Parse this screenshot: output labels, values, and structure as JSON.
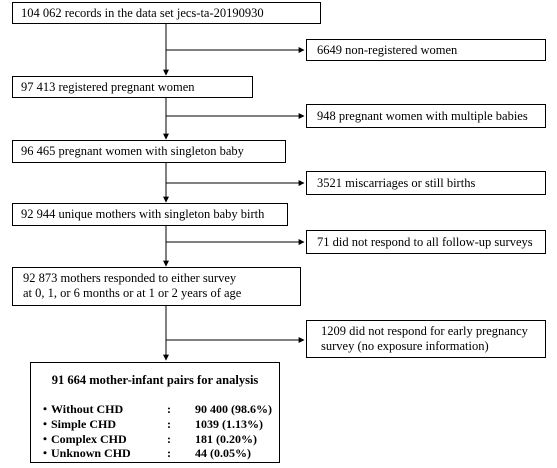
{
  "flow": {
    "step1": "104 062 records in the data set jecs-ta-20190930",
    "excl1": "6649 non-registered women",
    "step2": "97 413 registered pregnant women",
    "excl2": "948 pregnant women with multiple babies",
    "step3": "96 465 pregnant women with singleton baby",
    "excl3": "3521 miscarriages or still births",
    "step4": "92 944 unique mothers with singleton baby birth",
    "excl4": "71 did not respond to all follow-up surveys",
    "step5_line1": "92 873 mothers responded to either survey",
    "step5_line2": "at 0, 1, or 6 months or at 1 or 2 years of age",
    "excl5_line1": "1209 did not respond for early pregnancy",
    "excl5_line2": "survey (no exposure information)"
  },
  "final": {
    "title": "91 664 mother-infant pairs for analysis",
    "rows": [
      {
        "label": "・Without CHD",
        "colon": ":",
        "value": "90 400 (98.6%)"
      },
      {
        "label": "・Simple CHD",
        "colon": ":",
        "value": "1039 (1.13%)"
      },
      {
        "label": "・Complex CHD",
        "colon": ":",
        "value": "181 (0.20%)"
      },
      {
        "label": "・Unknown CHD",
        "colon": ":",
        "value": "44 (0.05%)"
      }
    ]
  }
}
